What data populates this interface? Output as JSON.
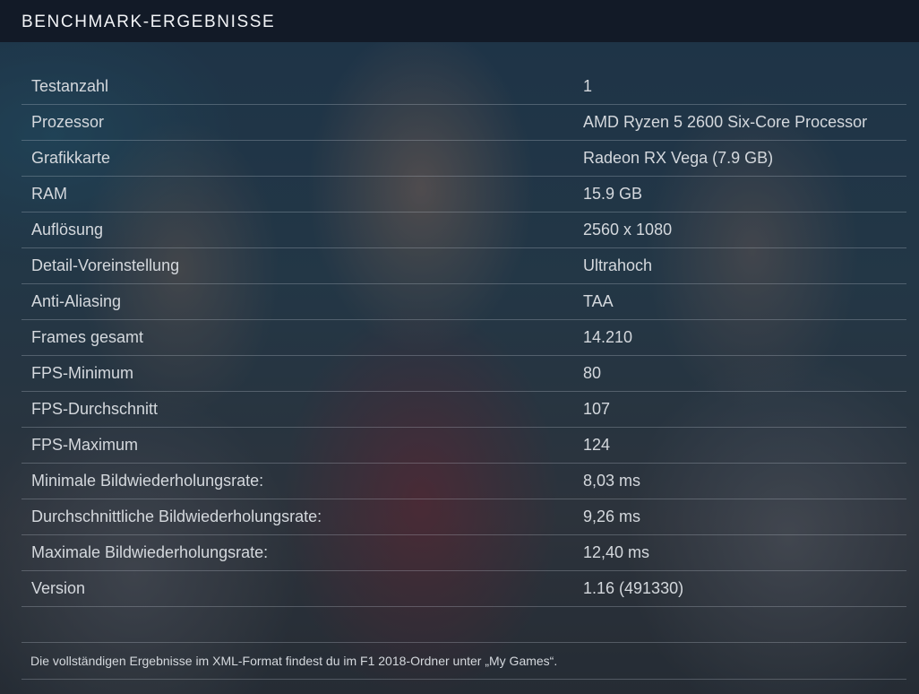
{
  "header": {
    "title": "BENCHMARK-ERGEBNISSE"
  },
  "results": [
    {
      "label": "Testanzahl",
      "value": "1"
    },
    {
      "label": "Prozessor",
      "value": "AMD Ryzen 5 2600 Six-Core Processor"
    },
    {
      "label": "Grafikkarte",
      "value": "Radeon RX Vega (7.9 GB)"
    },
    {
      "label": "RAM",
      "value": "15.9 GB"
    },
    {
      "label": "Auflösung",
      "value": "2560 x 1080"
    },
    {
      "label": "Detail-Voreinstellung",
      "value": "Ultrahoch"
    },
    {
      "label": "Anti-Aliasing",
      "value": "TAA"
    },
    {
      "label": "Frames gesamt",
      "value": "14.210"
    },
    {
      "label": "FPS-Minimum",
      "value": "80"
    },
    {
      "label": "FPS-Durchschnitt",
      "value": "107"
    },
    {
      "label": "FPS-Maximum",
      "value": "124"
    },
    {
      "label": "Minimale Bildwiederholungsrate:",
      "value": "8,03 ms"
    },
    {
      "label": "Durchschnittliche Bildwiederholungsrate:",
      "value": "9,26 ms"
    },
    {
      "label": "Maximale Bildwiederholungsrate:",
      "value": "12,40 ms"
    },
    {
      "label": "Version",
      "value": "1.16 (491330)"
    }
  ],
  "footer": {
    "note": "Die vollständigen Ergebnisse im XML-Format findest du im F1 2018-Ordner unter „My Games“."
  }
}
